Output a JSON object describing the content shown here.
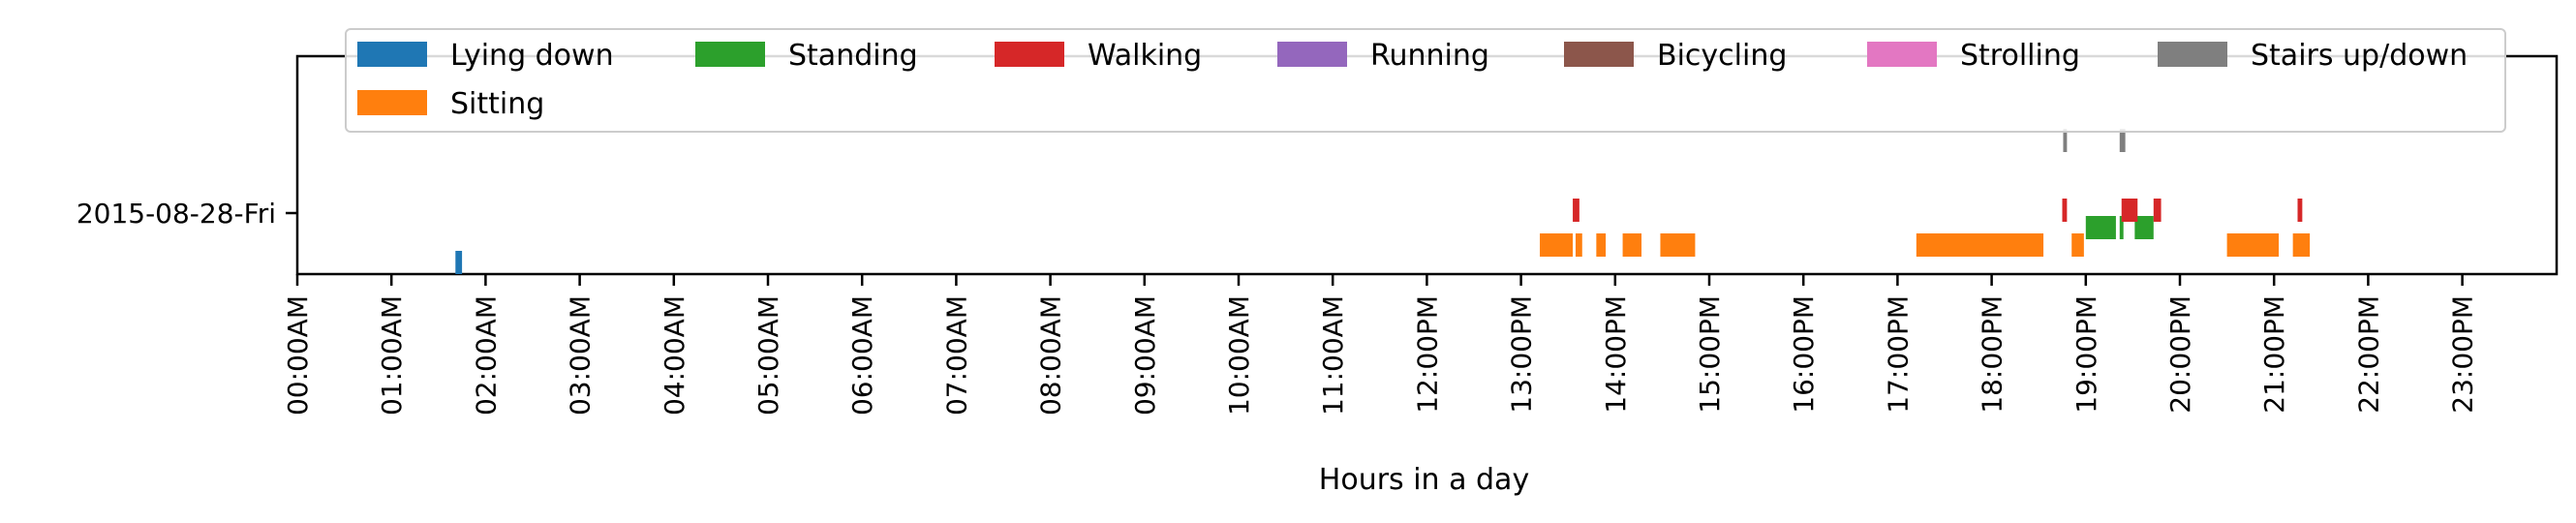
{
  "chart_data": {
    "type": "bar",
    "subtype": "timeline",
    "title": "",
    "xlabel": "Hours in a day",
    "ylabel": "",
    "xlim": [
      0,
      24
    ],
    "x_unit": "hours",
    "grid": false,
    "legend_position": "top",
    "y_categories": [
      "2015-08-28-Fri"
    ],
    "x_tick_labels": [
      "00:00AM",
      "01:00AM",
      "02:00AM",
      "03:00AM",
      "04:00AM",
      "05:00AM",
      "06:00AM",
      "07:00AM",
      "08:00AM",
      "09:00AM",
      "10:00AM",
      "11:00AM",
      "12:00PM",
      "13:00PM",
      "14:00PM",
      "15:00PM",
      "16:00PM",
      "17:00PM",
      "18:00PM",
      "19:00PM",
      "20:00PM",
      "21:00PM",
      "22:00PM",
      "23:00PM"
    ],
    "series": [
      {
        "name": "Lying down",
        "color": "#1f77b4",
        "lane": 0,
        "intervals": [
          [
            1.68,
            1.75
          ]
        ]
      },
      {
        "name": "Sitting",
        "color": "#ff7f0e",
        "lane": 1,
        "intervals": [
          [
            13.2,
            13.55
          ],
          [
            13.58,
            13.65
          ],
          [
            13.8,
            13.9
          ],
          [
            14.08,
            14.28
          ],
          [
            14.48,
            14.85
          ],
          [
            17.2,
            18.55
          ],
          [
            18.85,
            18.98
          ],
          [
            20.5,
            21.05
          ],
          [
            21.2,
            21.38
          ]
        ]
      },
      {
        "name": "Standing",
        "color": "#2ca02c",
        "lane": 2,
        "intervals": [
          [
            19.0,
            19.32
          ],
          [
            19.36,
            19.4
          ],
          [
            19.52,
            19.72
          ]
        ]
      },
      {
        "name": "Walking",
        "color": "#d62728",
        "lane": 3,
        "intervals": [
          [
            13.55,
            13.62
          ],
          [
            18.75,
            18.8
          ],
          [
            19.38,
            19.55
          ],
          [
            19.72,
            19.8
          ],
          [
            21.25,
            21.3
          ]
        ]
      },
      {
        "name": "Running",
        "color": "#9467bd",
        "lane": 4,
        "intervals": []
      },
      {
        "name": "Bicycling",
        "color": "#8c564b",
        "lane": 5,
        "intervals": []
      },
      {
        "name": "Strolling",
        "color": "#e377c2",
        "lane": 6,
        "intervals": []
      },
      {
        "name": "Stairs up/down",
        "color": "#7f7f7f",
        "lane": 7,
        "intervals": [
          [
            18.76,
            18.8
          ],
          [
            19.36,
            19.42
          ]
        ]
      }
    ],
    "legend_order": [
      0,
      2,
      3,
      4,
      5,
      6,
      7,
      1
    ]
  }
}
